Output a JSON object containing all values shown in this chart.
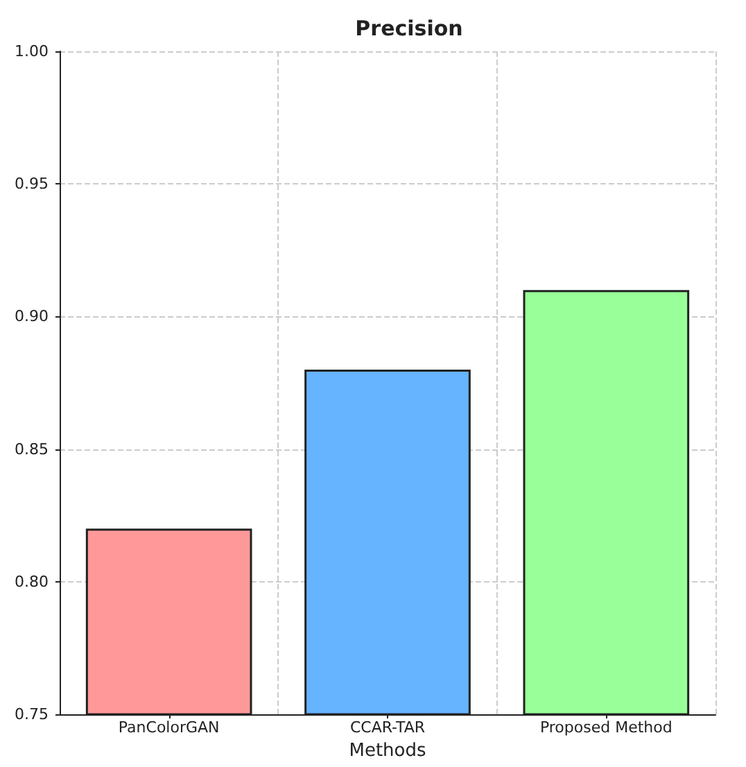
{
  "chart_data": {
    "type": "bar",
    "title": "Precision",
    "xlabel": "Methods",
    "categories": [
      "PanColorGAN",
      "CCAR-TAR",
      "Proposed Method"
    ],
    "values": [
      0.82,
      0.88,
      0.91
    ],
    "colors": [
      "#ff9999",
      "#66b3ff",
      "#99ff99"
    ],
    "ylim": [
      0.75,
      1.0
    ],
    "yticks": [
      0.75,
      {
        "value": 0.8,
        "label": "0.80"
      },
      0.85,
      {
        "value": 0.9,
        "label": "0.90"
      },
      0.95,
      {
        "value": 1.0,
        "label": "1.00"
      }
    ],
    "grid": true
  }
}
